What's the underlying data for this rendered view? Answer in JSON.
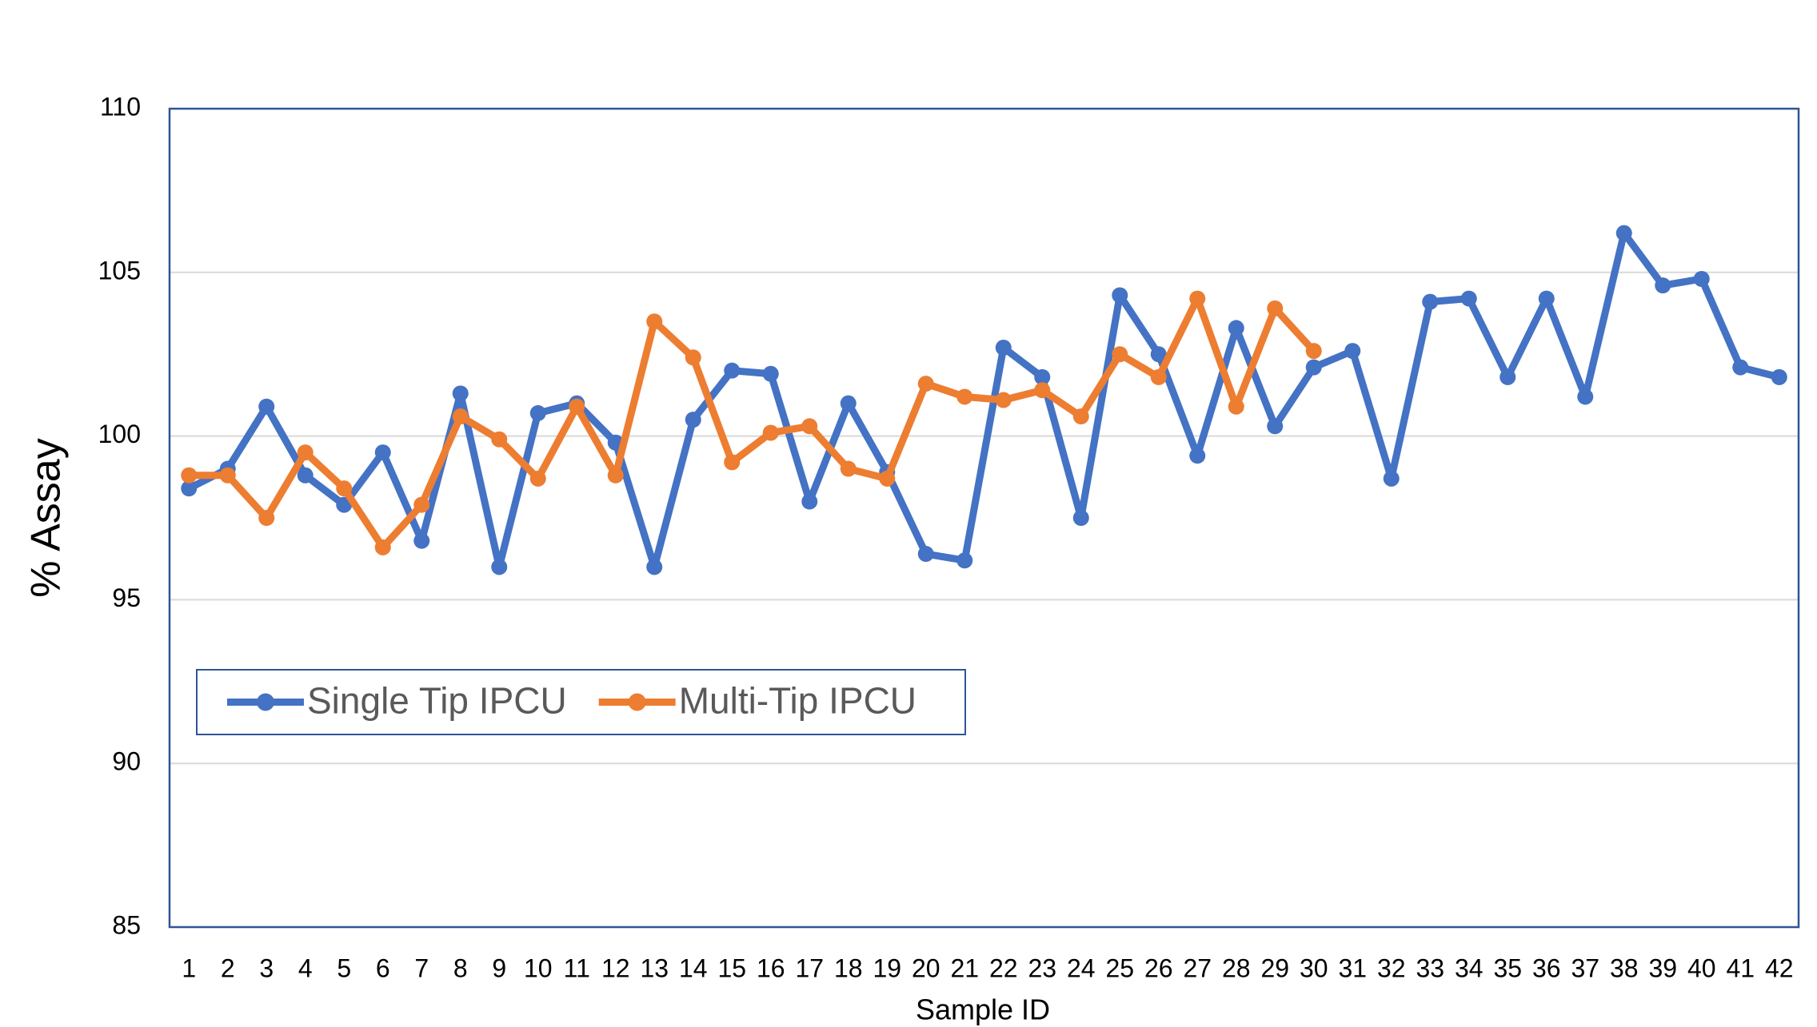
{
  "chart_data": {
    "type": "line",
    "x_label": "Sample ID",
    "y_label": "% Assay",
    "categories": [
      "1",
      "2",
      "3",
      "4",
      "5",
      "6",
      "7",
      "8",
      "9",
      "10",
      "11",
      "12",
      "13",
      "14",
      "15",
      "16",
      "17",
      "18",
      "19",
      "20",
      "21",
      "22",
      "23",
      "24",
      "25",
      "26",
      "27",
      "28",
      "29",
      "30",
      "31",
      "32",
      "33",
      "34",
      "35",
      "36",
      "37",
      "38",
      "39",
      "40",
      "41",
      "42"
    ],
    "series": [
      {
        "name": "Single Tip IPCU",
        "color": "#4472c4",
        "values": [
          98.4,
          99.0,
          100.9,
          98.8,
          97.9,
          99.5,
          96.8,
          101.3,
          96.0,
          100.7,
          101.0,
          99.8,
          96.0,
          100.5,
          102.0,
          101.9,
          98.0,
          101.0,
          98.9,
          96.4,
          96.2,
          102.7,
          101.8,
          97.5,
          104.3,
          102.5,
          99.4,
          103.3,
          100.3,
          102.1,
          102.6,
          98.7,
          104.1,
          104.2,
          101.8,
          104.2,
          101.2,
          106.2,
          104.6,
          104.8,
          102.1,
          101.8
        ]
      },
      {
        "name": "Multi-Tip IPCU",
        "color": "#ed7d31",
        "values": [
          98.8,
          98.8,
          97.5,
          99.5,
          98.4,
          96.6,
          97.9,
          100.6,
          99.9,
          98.7,
          100.9,
          98.8,
          103.5,
          102.4,
          99.2,
          100.1,
          100.3,
          99.0,
          98.7,
          101.6,
          101.2,
          101.1,
          101.4,
          100.6,
          102.5,
          101.8,
          104.2,
          100.9,
          103.9,
          102.6,
          null,
          null,
          null,
          null,
          null,
          null,
          null,
          null,
          null,
          null,
          null,
          null
        ]
      }
    ],
    "ylim": [
      85,
      110
    ],
    "yticks": [
      85,
      90,
      95,
      100,
      105,
      110
    ],
    "grid": true,
    "legend": "lower left"
  }
}
